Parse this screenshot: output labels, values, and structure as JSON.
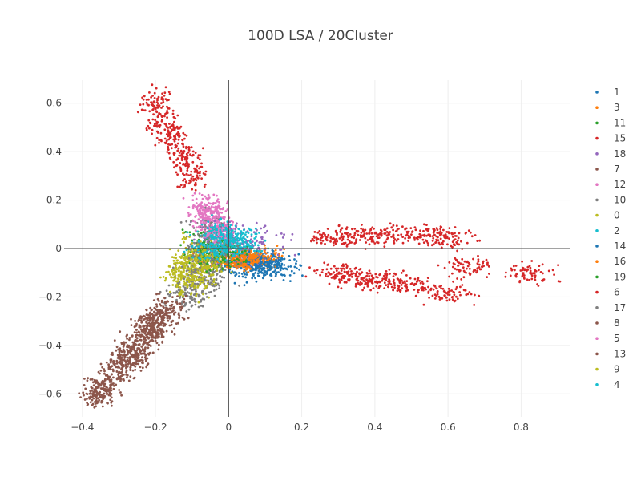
{
  "chart_data": {
    "type": "scatter",
    "title": "100D LSA / 20Cluster",
    "xlabel": "",
    "ylabel": "",
    "xlim": [
      -0.45,
      0.935
    ],
    "ylim": [
      -0.695,
      0.695
    ],
    "x_ticks": [
      -0.4,
      -0.2,
      0,
      0.2,
      0.4,
      0.6,
      0.8
    ],
    "x_tick_labels": [
      "−0.4",
      "−0.2",
      "0",
      "0.2",
      "0.4",
      "0.6",
      "0.8"
    ],
    "y_ticks": [
      -0.6,
      -0.4,
      -0.2,
      0,
      0.2,
      0.4,
      0.6
    ],
    "y_tick_labels": [
      "−0.6",
      "−0.4",
      "−0.2",
      "0",
      "0.2",
      "0.4",
      "0.6"
    ],
    "grid": true,
    "zero_lines": true,
    "legend_position": "right",
    "series": [
      {
        "name": "1",
        "color": "#1f77b4",
        "centers": [
          [
            0.08,
            -0.06
          ],
          [
            0.05,
            -0.08
          ],
          [
            0.11,
            -0.07
          ]
        ],
        "spread": [
          0.04,
          0.025
        ]
      },
      {
        "name": "3",
        "color": "#ff7f0e",
        "centers": [
          [
            0.04,
            -0.05
          ],
          [
            0.0,
            -0.04
          ],
          [
            0.07,
            -0.03
          ]
        ],
        "spread": [
          0.04,
          0.02
        ]
      },
      {
        "name": "11",
        "color": "#2ca02c",
        "centers": [
          [
            -0.08,
            -0.02
          ],
          [
            -0.05,
            0.01
          ]
        ],
        "spread": [
          0.03,
          0.04
        ]
      },
      {
        "name": "15",
        "color": "#d62728",
        "centers": [
          [
            -0.2,
            0.6
          ],
          [
            -0.18,
            0.52
          ],
          [
            -0.15,
            0.45
          ],
          [
            -0.12,
            0.38
          ],
          [
            -0.1,
            0.3
          ]
        ],
        "spread": [
          0.02,
          0.03
        ]
      },
      {
        "name": "18",
        "color": "#9467bd",
        "centers": [
          [
            -0.02,
            0.05
          ],
          [
            0.03,
            0.0
          ],
          [
            0.08,
            0.02
          ]
        ],
        "spread": [
          0.04,
          0.04
        ]
      },
      {
        "name": "7",
        "color": "#8c564b",
        "centers": [
          [
            -0.35,
            -0.59
          ],
          [
            -0.3,
            -0.5
          ],
          [
            -0.26,
            -0.42
          ],
          [
            -0.22,
            -0.34
          ],
          [
            -0.18,
            -0.28
          ]
        ],
        "spread": [
          0.02,
          0.03
        ]
      },
      {
        "name": "12",
        "color": "#e377c2",
        "centers": [
          [
            -0.06,
            0.17
          ],
          [
            -0.04,
            0.12
          ]
        ],
        "spread": [
          0.02,
          0.03
        ]
      },
      {
        "name": "10",
        "color": "#7f7f7f",
        "centers": [
          [
            -0.12,
            -0.2
          ],
          [
            -0.08,
            -0.15
          ],
          [
            -0.05,
            -0.1
          ]
        ],
        "spread": [
          0.03,
          0.03
        ]
      },
      {
        "name": "0",
        "color": "#bcbd22",
        "centers": [
          [
            -0.1,
            -0.1
          ],
          [
            -0.08,
            -0.05
          ],
          [
            -0.12,
            -0.13
          ]
        ],
        "spread": [
          0.03,
          0.04
        ]
      },
      {
        "name": "2",
        "color": "#17becf",
        "centers": [
          [
            -0.02,
            0.03
          ],
          [
            0.01,
            0.01
          ],
          [
            0.04,
            0.02
          ]
        ],
        "spread": [
          0.03,
          0.03
        ]
      },
      {
        "name": "14",
        "color": "#1f77b4",
        "centers": [
          [
            0.09,
            -0.05
          ],
          [
            0.12,
            -0.08
          ]
        ],
        "spread": [
          0.03,
          0.02
        ]
      },
      {
        "name": "16",
        "color": "#ff7f0e",
        "centers": [
          [
            0.03,
            -0.06
          ],
          [
            0.06,
            -0.04
          ]
        ],
        "spread": [
          0.03,
          0.015
        ]
      },
      {
        "name": "19",
        "color": "#2ca02c",
        "centers": [
          [
            -0.04,
            -0.03
          ],
          [
            0.0,
            -0.02
          ]
        ],
        "spread": [
          0.03,
          0.03
        ]
      },
      {
        "name": "6",
        "color": "#d62728",
        "centers": [
          [
            0.3,
            -0.1
          ],
          [
            0.36,
            -0.12
          ],
          [
            0.42,
            -0.13
          ],
          [
            0.5,
            -0.15
          ],
          [
            0.6,
            -0.19
          ],
          [
            0.66,
            -0.08
          ],
          [
            0.82,
            -0.1
          ],
          [
            0.28,
            0.05
          ],
          [
            0.36,
            0.05
          ],
          [
            0.44,
            0.06
          ],
          [
            0.55,
            0.06
          ],
          [
            0.6,
            0.04
          ]
        ],
        "spread": [
          0.035,
          0.02
        ]
      },
      {
        "name": "17",
        "color": "#7f7f7f",
        "centers": [
          [
            -0.06,
            0.07
          ],
          [
            -0.03,
            0.0
          ],
          [
            -0.09,
            -0.08
          ]
        ],
        "spread": [
          0.03,
          0.05
        ]
      },
      {
        "name": "8",
        "color": "#8c564b",
        "centers": [
          [
            -0.33,
            -0.55
          ],
          [
            -0.28,
            -0.46
          ],
          [
            -0.24,
            -0.38
          ],
          [
            -0.2,
            -0.31
          ],
          [
            -0.16,
            -0.25
          ]
        ],
        "spread": [
          0.025,
          0.03
        ]
      },
      {
        "name": "5",
        "color": "#e377c2",
        "centers": [
          [
            -0.06,
            0.15
          ],
          [
            -0.04,
            0.09
          ],
          [
            -0.02,
            0.06
          ]
        ],
        "spread": [
          0.025,
          0.03
        ]
      },
      {
        "name": "13",
        "color": "#8c564b",
        "centers": [
          [
            -0.36,
            -0.6
          ],
          [
            -0.27,
            -0.44
          ],
          [
            -0.21,
            -0.33
          ]
        ],
        "spread": [
          0.02,
          0.03
        ]
      },
      {
        "name": "9",
        "color": "#bcbd22",
        "centers": [
          [
            -0.12,
            -0.1
          ],
          [
            -0.06,
            -0.06
          ],
          [
            -0.09,
            -0.02
          ]
        ],
        "spread": [
          0.03,
          0.04
        ]
      },
      {
        "name": "4",
        "color": "#17becf",
        "centers": [
          [
            -0.03,
            0.06
          ],
          [
            0.0,
            0.03
          ],
          [
            -0.04,
            0.0
          ]
        ],
        "spread": [
          0.03,
          0.03
        ]
      }
    ]
  }
}
